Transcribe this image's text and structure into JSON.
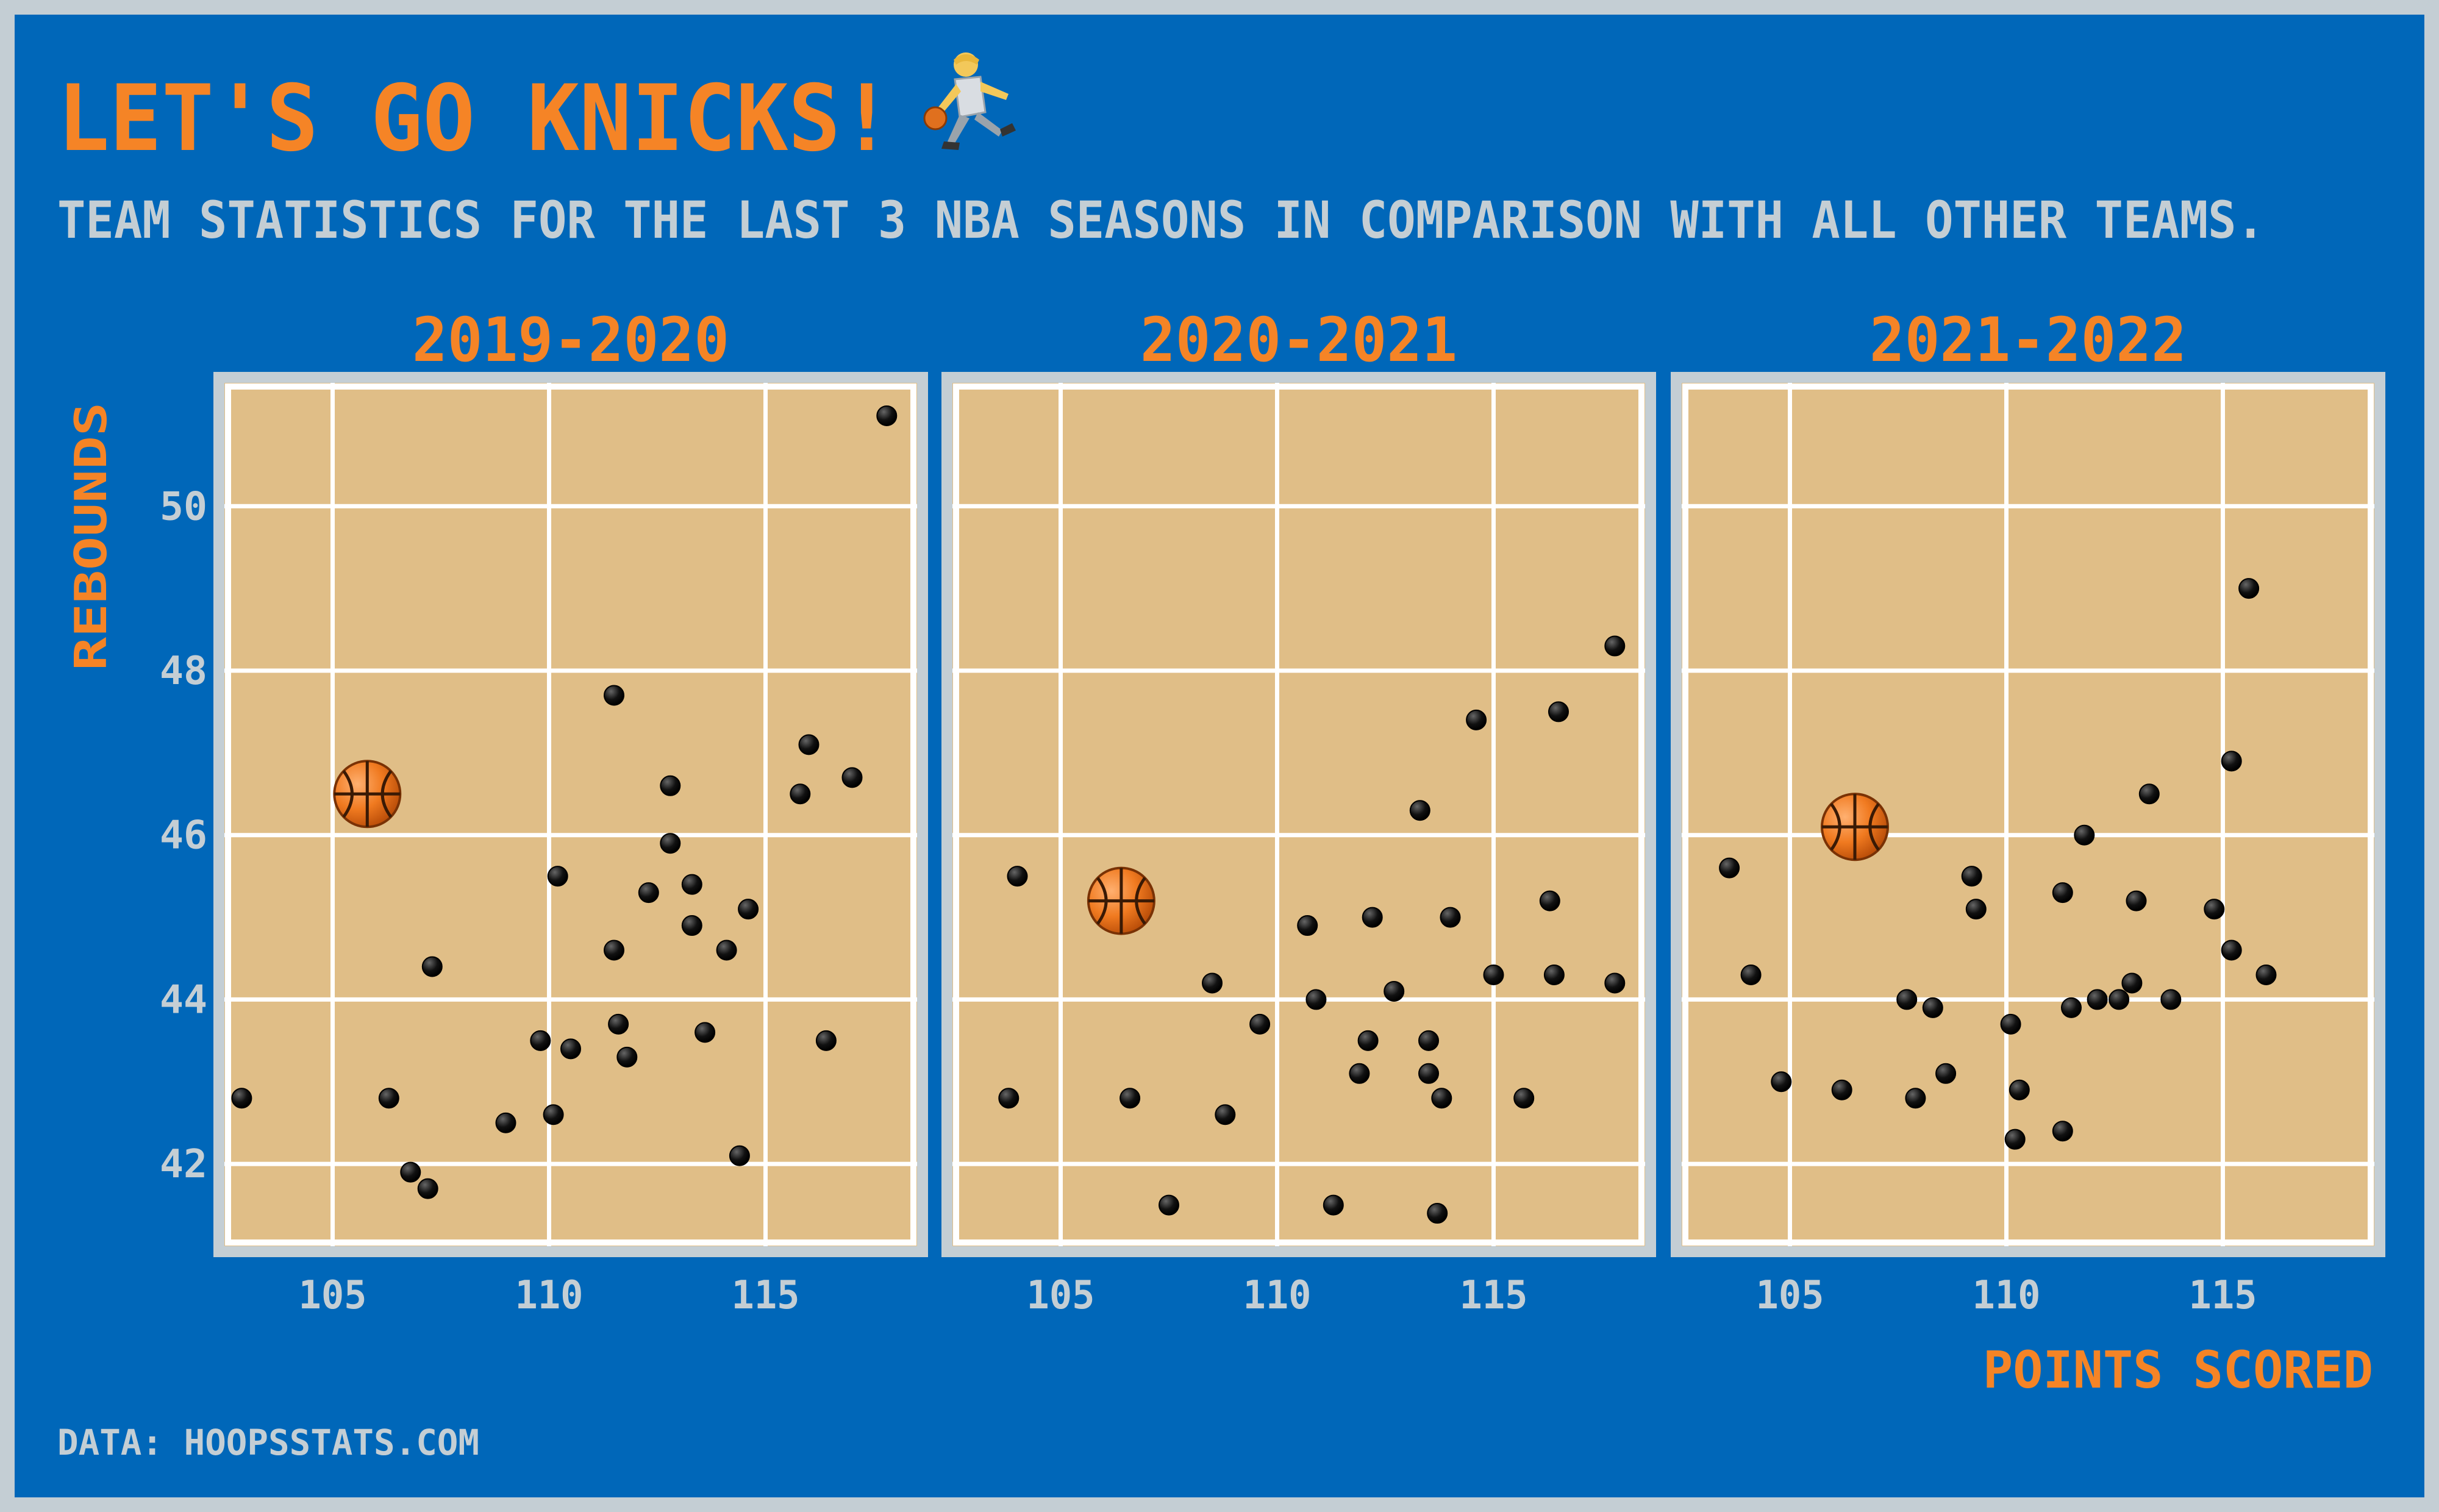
{
  "title": "LET'S GO KNICKS!",
  "title_icon": "basketball-player-icon",
  "subtitle": "TEAM STATISTICS FOR THE LAST 3 NBA SEASONS IN COMPARISON WITH ALL OTHER TEAMS.",
  "caption": "DATA: HOOPSSTATS.COM",
  "highlight_icon": "basketball-icon",
  "colors": {
    "background": "#0067B9",
    "frame": "#C4CED4",
    "panel": "#E0BE87",
    "accent": "#F58426",
    "grid": "#FFFFFF",
    "point": "#111111",
    "tick": "#C4CED4"
  },
  "chart_data": [
    {
      "type": "scatter",
      "title": "2019-2020",
      "xlabel": "POINTS SCORED",
      "ylabel": "REBOUNDS",
      "xlim": [
        102.5,
        118.5
      ],
      "ylim": [
        41,
        51.5
      ],
      "xticks": [
        105,
        110,
        115
      ],
      "yticks": [
        42,
        44,
        46,
        48,
        50
      ],
      "grid": true,
      "highlight": {
        "x": 105.8,
        "y": 46.5
      },
      "points": [
        {
          "x": 102.9,
          "y": 42.8
        },
        {
          "x": 106.3,
          "y": 42.8
        },
        {
          "x": 106.8,
          "y": 41.9
        },
        {
          "x": 107.2,
          "y": 41.7
        },
        {
          "x": 107.3,
          "y": 44.4
        },
        {
          "x": 109.0,
          "y": 42.5
        },
        {
          "x": 109.8,
          "y": 43.5
        },
        {
          "x": 110.1,
          "y": 42.6
        },
        {
          "x": 110.2,
          "y": 45.5
        },
        {
          "x": 110.5,
          "y": 43.4
        },
        {
          "x": 111.5,
          "y": 47.7
        },
        {
          "x": 111.5,
          "y": 44.6
        },
        {
          "x": 111.6,
          "y": 43.7
        },
        {
          "x": 111.8,
          "y": 43.3
        },
        {
          "x": 112.3,
          "y": 45.3
        },
        {
          "x": 112.8,
          "y": 46.6
        },
        {
          "x": 112.8,
          "y": 45.9
        },
        {
          "x": 113.3,
          "y": 45.4
        },
        {
          "x": 113.3,
          "y": 44.9
        },
        {
          "x": 113.6,
          "y": 43.6
        },
        {
          "x": 114.1,
          "y": 44.6
        },
        {
          "x": 114.4,
          "y": 42.1
        },
        {
          "x": 114.6,
          "y": 45.1
        },
        {
          "x": 115.8,
          "y": 46.5
        },
        {
          "x": 116.0,
          "y": 47.1
        },
        {
          "x": 116.4,
          "y": 43.5
        },
        {
          "x": 117.0,
          "y": 46.7
        },
        {
          "x": 117.8,
          "y": 51.1
        }
      ]
    },
    {
      "type": "scatter",
      "title": "2020-2021",
      "xlabel": "POINTS SCORED",
      "ylabel": "REBOUNDS",
      "xlim": [
        102.5,
        118.5
      ],
      "ylim": [
        41,
        51.5
      ],
      "xticks": [
        105,
        110,
        115
      ],
      "yticks": [
        42,
        44,
        46,
        48,
        50
      ],
      "grid": true,
      "highlight": {
        "x": 106.4,
        "y": 45.2
      },
      "points": [
        {
          "x": 103.8,
          "y": 42.8
        },
        {
          "x": 104.0,
          "y": 45.5
        },
        {
          "x": 106.6,
          "y": 42.8
        },
        {
          "x": 107.5,
          "y": 41.5
        },
        {
          "x": 108.5,
          "y": 44.2
        },
        {
          "x": 108.8,
          "y": 42.6
        },
        {
          "x": 109.6,
          "y": 43.7
        },
        {
          "x": 110.7,
          "y": 44.9
        },
        {
          "x": 110.9,
          "y": 44.0
        },
        {
          "x": 111.3,
          "y": 41.5
        },
        {
          "x": 111.9,
          "y": 43.1
        },
        {
          "x": 112.1,
          "y": 43.5
        },
        {
          "x": 112.2,
          "y": 45.0
        },
        {
          "x": 112.7,
          "y": 44.1
        },
        {
          "x": 113.3,
          "y": 46.3
        },
        {
          "x": 113.5,
          "y": 43.5
        },
        {
          "x": 113.5,
          "y": 43.1
        },
        {
          "x": 113.7,
          "y": 41.4
        },
        {
          "x": 113.8,
          "y": 42.8
        },
        {
          "x": 114.0,
          "y": 45.0
        },
        {
          "x": 114.6,
          "y": 47.4
        },
        {
          "x": 115.0,
          "y": 44.3
        },
        {
          "x": 115.7,
          "y": 42.8
        },
        {
          "x": 116.3,
          "y": 45.2
        },
        {
          "x": 116.4,
          "y": 44.3
        },
        {
          "x": 116.5,
          "y": 47.5
        },
        {
          "x": 117.8,
          "y": 44.2
        },
        {
          "x": 117.8,
          "y": 48.3
        }
      ]
    },
    {
      "type": "scatter",
      "title": "2021-2022",
      "xlabel": "POINTS SCORED",
      "ylabel": "REBOUNDS",
      "xlim": [
        102.5,
        118.5
      ],
      "ylim": [
        41,
        51.5
      ],
      "xticks": [
        105,
        110,
        115
      ],
      "yticks": [
        42,
        44,
        46,
        48,
        50
      ],
      "grid": true,
      "highlight": {
        "x": 106.5,
        "y": 46.1
      },
      "points": [
        {
          "x": 103.6,
          "y": 45.6
        },
        {
          "x": 104.1,
          "y": 44.3
        },
        {
          "x": 104.8,
          "y": 43.0
        },
        {
          "x": 106.2,
          "y": 42.9
        },
        {
          "x": 107.7,
          "y": 44.0
        },
        {
          "x": 107.9,
          "y": 42.8
        },
        {
          "x": 108.3,
          "y": 43.9
        },
        {
          "x": 108.6,
          "y": 43.1
        },
        {
          "x": 109.2,
          "y": 45.5
        },
        {
          "x": 109.3,
          "y": 45.1
        },
        {
          "x": 110.1,
          "y": 43.7
        },
        {
          "x": 110.2,
          "y": 42.3
        },
        {
          "x": 110.3,
          "y": 42.9
        },
        {
          "x": 111.3,
          "y": 45.3
        },
        {
          "x": 111.3,
          "y": 42.4
        },
        {
          "x": 111.5,
          "y": 43.9
        },
        {
          "x": 111.8,
          "y": 46.0
        },
        {
          "x": 112.1,
          "y": 44.0
        },
        {
          "x": 112.6,
          "y": 44.0
        },
        {
          "x": 112.9,
          "y": 44.2
        },
        {
          "x": 113.0,
          "y": 45.2
        },
        {
          "x": 113.3,
          "y": 46.5
        },
        {
          "x": 113.8,
          "y": 44.0
        },
        {
          "x": 114.8,
          "y": 45.1
        },
        {
          "x": 115.2,
          "y": 46.9
        },
        {
          "x": 115.2,
          "y": 44.6
        },
        {
          "x": 115.6,
          "y": 49.0
        },
        {
          "x": 116.0,
          "y": 44.3
        }
      ]
    }
  ]
}
